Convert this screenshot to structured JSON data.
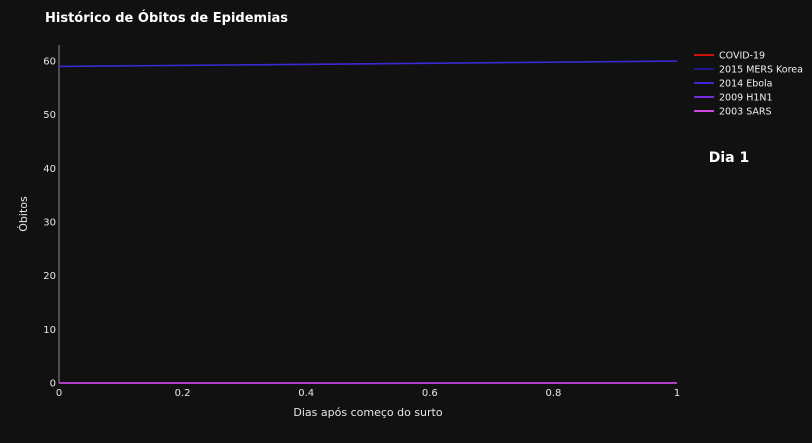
{
  "chart_data": {
    "type": "line",
    "title": "Histórico de Óbitos de Epidemias",
    "xlabel": "Dias após começo do surto",
    "ylabel": "Óbitos",
    "xlim": [
      0,
      1
    ],
    "ylim": [
      0,
      63
    ],
    "xticks": [
      "0",
      "0.2",
      "0.4",
      "0.6",
      "0.8",
      "1"
    ],
    "yticks": [
      "0",
      "10",
      "20",
      "30",
      "40",
      "50",
      "60"
    ],
    "grid": false,
    "legend_position": "top-right",
    "annotation": "Dia 1",
    "x": [
      0,
      1
    ],
    "series": [
      {
        "name": "COVID-19",
        "color": "#cc1111",
        "values": [
          0,
          0
        ]
      },
      {
        "name": "2015 MERS Korea",
        "color": "#1a1a8c",
        "values": [
          0,
          0
        ]
      },
      {
        "name": "2014 Ebola",
        "color": "#3a2ad6",
        "values": [
          59,
          60
        ]
      },
      {
        "name": "2009 H1N1",
        "color": "#7a2ae0",
        "values": [
          0,
          0
        ]
      },
      {
        "name": "2003 SARS",
        "color": "#c84ad8",
        "values": [
          0,
          0
        ]
      }
    ]
  }
}
